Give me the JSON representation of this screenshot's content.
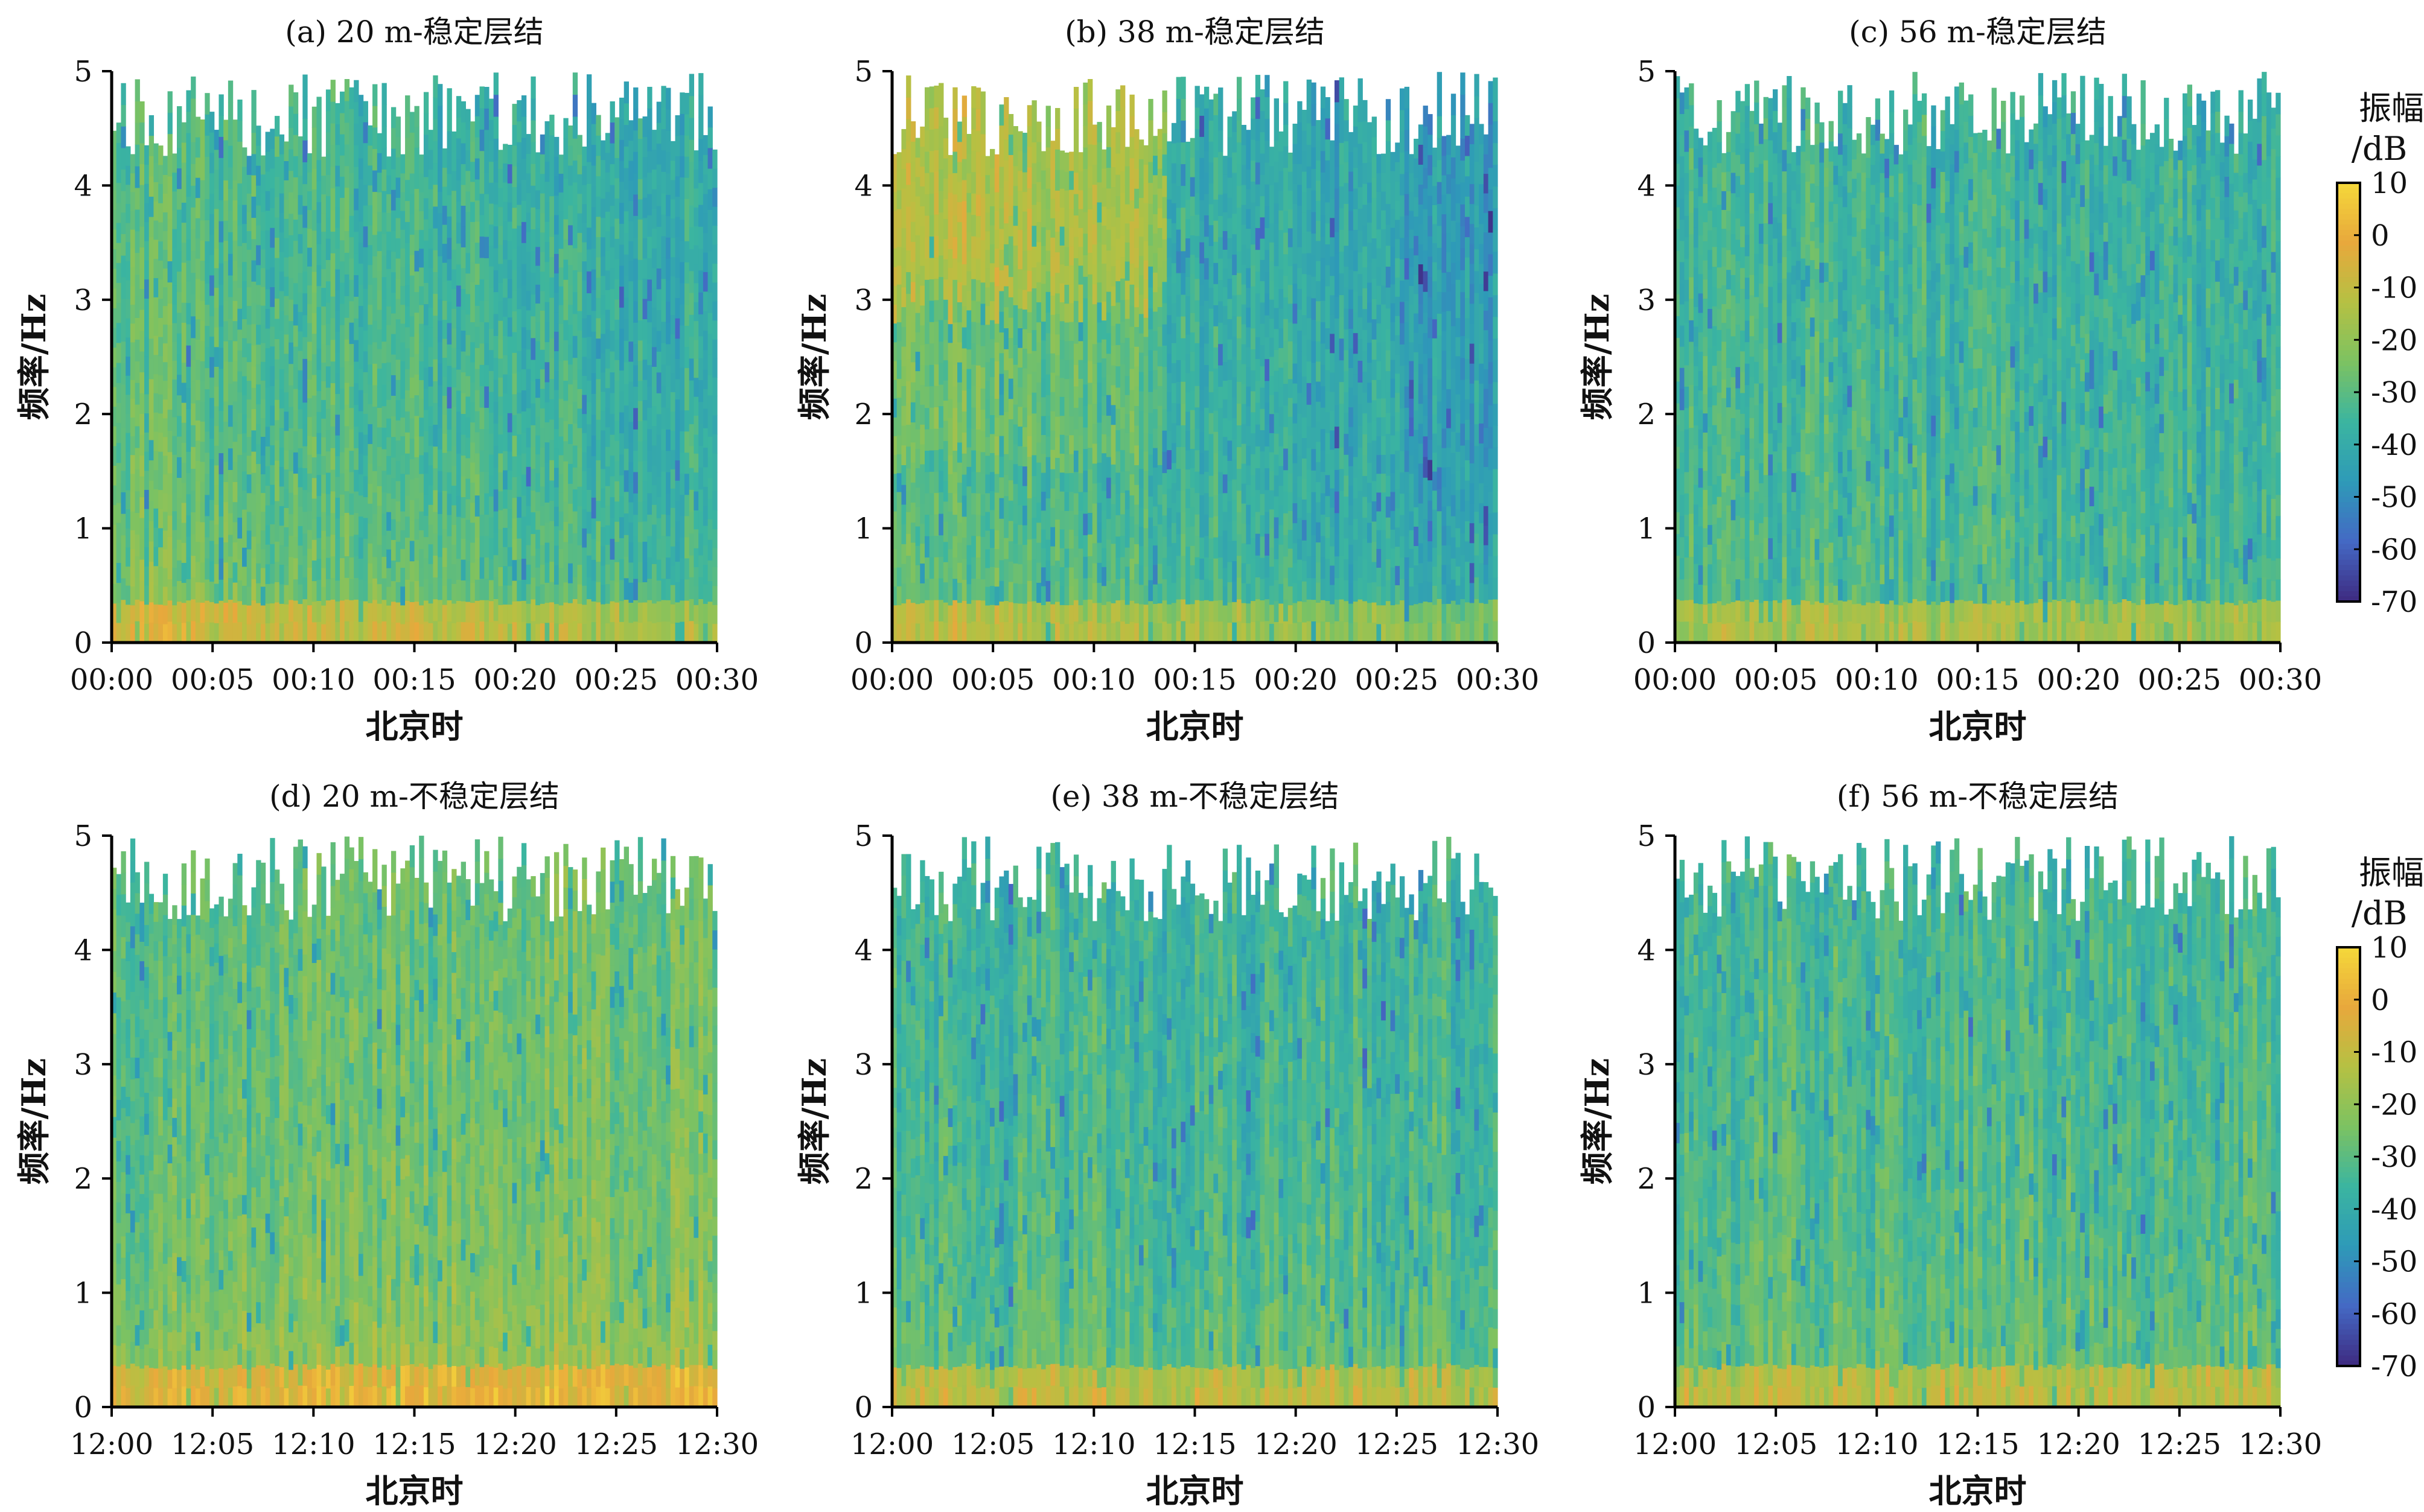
{
  "chart_data": [
    {
      "type": "heatmap",
      "title": "(a) 20 m-稳定层结",
      "xlabel": "北京时",
      "ylabel": "频率/Hz",
      "xticks": [
        "00:00",
        "00:05",
        "00:10",
        "00:15",
        "00:20",
        "00:25",
        "00:30"
      ],
      "yticks": [
        "0",
        "1",
        "2",
        "3",
        "4",
        "5"
      ],
      "ylim": [
        0,
        5
      ],
      "xlim": [
        "00:00",
        "00:30"
      ],
      "pattern": {
        "base": -28,
        "lf": 8,
        "hf": -8,
        "trend": -10,
        "warm": 0
      },
      "colorbar": false
    },
    {
      "type": "heatmap",
      "title": "(b) 38 m-稳定层结",
      "xlabel": "北京时",
      "ylabel": "频率/Hz",
      "xticks": [
        "00:00",
        "00:05",
        "00:10",
        "00:15",
        "00:20",
        "00:25",
        "00:30"
      ],
      "yticks": [
        "0",
        "1",
        "2",
        "3",
        "4",
        "5"
      ],
      "ylim": [
        0,
        5
      ],
      "xlim": [
        "00:00",
        "00:30"
      ],
      "pattern": {
        "base": -30,
        "lf": 6,
        "hf": -4,
        "trend": -14,
        "warm": 1
      },
      "colorbar": false
    },
    {
      "type": "heatmap",
      "title": "(c) 56 m-稳定层结",
      "xlabel": "北京时",
      "ylabel": "频率/Hz",
      "xticks": [
        "00:00",
        "00:05",
        "00:10",
        "00:15",
        "00:20",
        "00:25",
        "00:30"
      ],
      "yticks": [
        "0",
        "1",
        "2",
        "3",
        "4",
        "5"
      ],
      "ylim": [
        0,
        5
      ],
      "xlim": [
        "00:00",
        "00:30"
      ],
      "pattern": {
        "base": -32,
        "lf": 4,
        "hf": -6,
        "trend": -4,
        "warm": 0
      },
      "colorbar": true
    },
    {
      "type": "heatmap",
      "title": "(d) 20 m-不稳定层结",
      "xlabel": "北京时",
      "ylabel": "频率/Hz",
      "xticks": [
        "12:00",
        "12:05",
        "12:10",
        "12:15",
        "12:20",
        "12:25",
        "12:30"
      ],
      "yticks": [
        "0",
        "1",
        "2",
        "3",
        "4",
        "5"
      ],
      "ylim": [
        0,
        5
      ],
      "xlim": [
        "12:00",
        "12:30"
      ],
      "pattern": {
        "base": -27,
        "lf": 10,
        "hf": -7,
        "trend": 4,
        "warm": 0
      },
      "colorbar": false
    },
    {
      "type": "heatmap",
      "title": "(e) 38 m-不稳定层结",
      "xlabel": "北京时",
      "ylabel": "频率/Hz",
      "xticks": [
        "12:00",
        "12:05",
        "12:10",
        "12:15",
        "12:20",
        "12:25",
        "12:30"
      ],
      "yticks": [
        "0",
        "1",
        "2",
        "3",
        "4",
        "5"
      ],
      "ylim": [
        0,
        5
      ],
      "xlim": [
        "12:00",
        "12:30"
      ],
      "pattern": {
        "base": -32,
        "lf": 7,
        "hf": -8,
        "trend": 0,
        "warm": 0
      },
      "colorbar": false
    },
    {
      "type": "heatmap",
      "title": "(f) 56 m-不稳定层结",
      "xlabel": "北京时",
      "ylabel": "频率/Hz",
      "xticks": [
        "12:00",
        "12:05",
        "12:10",
        "12:15",
        "12:20",
        "12:25",
        "12:30"
      ],
      "yticks": [
        "0",
        "1",
        "2",
        "3",
        "4",
        "5"
      ],
      "ylim": [
        0,
        5
      ],
      "xlim": [
        "12:00",
        "12:30"
      ],
      "pattern": {
        "base": -31,
        "lf": 6,
        "hf": -7,
        "trend": 0,
        "warm": 0
      },
      "colorbar": true
    }
  ],
  "colorbar": {
    "label_line1": "振幅",
    "label_line2": "/dB",
    "ticks": [
      "10",
      "0",
      "-10",
      "-20",
      "-30",
      "-40",
      "-50",
      "-60",
      "-70"
    ],
    "range": [
      -70,
      10
    ],
    "colors": [
      "#3e2a80",
      "#4469c4",
      "#2e9ab8",
      "#3bb5a0",
      "#7cc262",
      "#b5c143",
      "#e8a83c",
      "#f5d83a"
    ]
  }
}
